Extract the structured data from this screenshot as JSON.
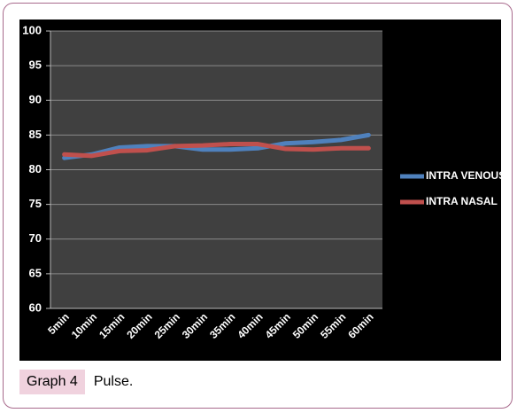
{
  "chart_data": {
    "type": "line",
    "categories": [
      "5min",
      "10min",
      "15min",
      "20min",
      "25min",
      "30min",
      "35min",
      "40min",
      "45min",
      "50min",
      "55min",
      "60min"
    ],
    "series": [
      {
        "name": "INTRA VENOUS",
        "color": "#4f81bd",
        "values": [
          81.7,
          82.2,
          83.2,
          83.4,
          83.4,
          82.9,
          82.9,
          83.1,
          83.8,
          84.0,
          84.3,
          85.0
        ]
      },
      {
        "name": "INTRA NASAL",
        "color": "#c0504d",
        "values": [
          82.2,
          82.0,
          82.7,
          82.8,
          83.4,
          83.5,
          83.7,
          83.7,
          83.0,
          82.9,
          83.1,
          83.1
        ]
      }
    ],
    "ylim": [
      60,
      100
    ],
    "yticks": [
      60,
      65,
      70,
      75,
      80,
      85,
      90,
      95,
      100
    ],
    "grid": true,
    "legend": "right"
  },
  "caption": {
    "label": "Graph 4",
    "text": "Pulse."
  }
}
